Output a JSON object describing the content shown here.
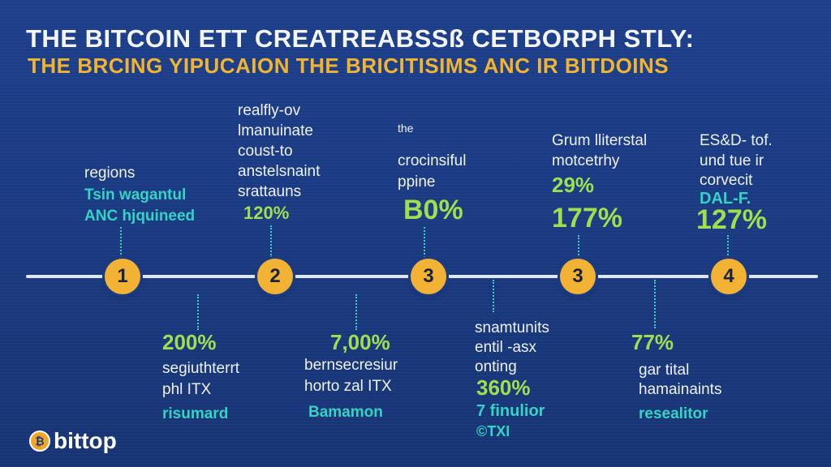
{
  "header": {
    "title": "THE BITCOIN ETT CREATREABSSß CETBORPH STLY:",
    "subtitle": "THE BRCING YIPUCAION THE BRICITISIMS ANC IR BITDOINS"
  },
  "milestones": [
    {
      "number": "1",
      "above": [
        "regions"
      ],
      "above_teal": [
        "Tsin wagantul",
        "ANC hjquineed"
      ],
      "below_value": "200%",
      "below_text": [
        "segiuthterrt",
        "phl ITX"
      ],
      "below_teal": "risumard"
    },
    {
      "number": "2",
      "above": [
        "realfly-ov",
        "lmanuinate",
        "coust-to",
        "anstelsnaint",
        "srattauns"
      ],
      "above_value": "120%",
      "below_value": "7,00%",
      "below_text": [
        "bernsecresiur",
        "horto zal ITX"
      ],
      "below_teal": "Bamamon"
    },
    {
      "number": "3",
      "above": [
        "the",
        "crocinsiful",
        "ppine"
      ],
      "above_value": "B0%",
      "below_text": [
        "snamtunits",
        "entil -asx",
        "onting"
      ],
      "below_value": "360%",
      "below_teal": [
        "7 finulior",
        "©TXI"
      ]
    },
    {
      "number": "3",
      "above": [
        "Grum lliterstal",
        "motcetrhy"
      ],
      "above_value_small": "29%",
      "above_value": "177%",
      "below_value": "77%",
      "below_text": [
        "gar tital",
        "hamainaints"
      ],
      "below_teal": "resealitor"
    },
    {
      "number": "4",
      "above": [
        "ES&D- tof.",
        "und tue ir",
        "corvecit"
      ],
      "above_teal": "DAL-F.",
      "above_value": "127%"
    }
  ],
  "logo": {
    "text": "bittop",
    "mark_icon": "bitcoin-coin-icon"
  },
  "colors": {
    "accent_gold": "#f2b233",
    "value_green": "#9de04f",
    "teal": "#34d3c4",
    "background": "#1a3a82"
  }
}
